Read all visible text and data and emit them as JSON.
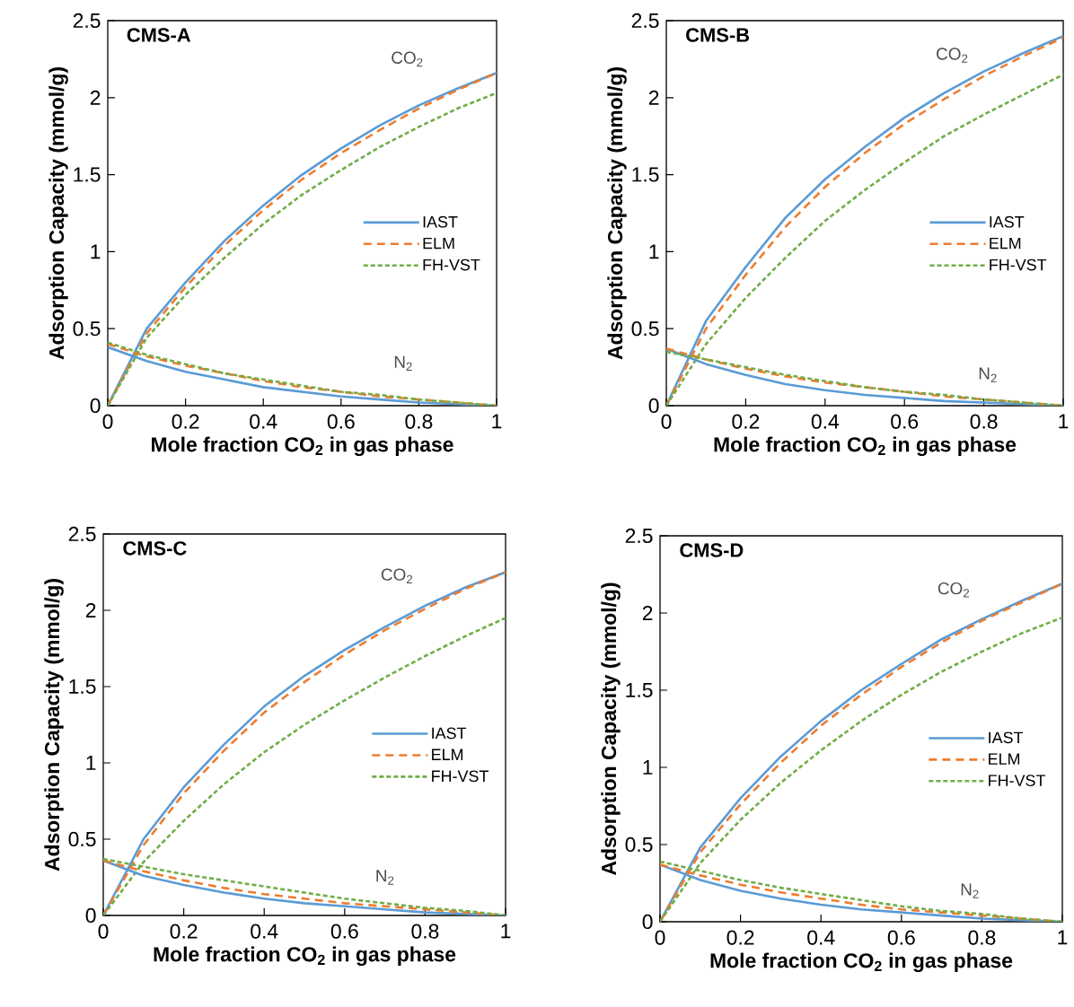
{
  "chart_data": [
    {
      "type": "line",
      "title": "CMS-A",
      "xlabel": "Mole fraction CO$_{2}$ in gas phase",
      "ylabel": "Adsorption Capacity (mmol/g)",
      "x": [
        0,
        0.1,
        0.2,
        0.3,
        0.4,
        0.5,
        0.6,
        0.7,
        0.8,
        0.9,
        1
      ],
      "xlim": [
        0,
        1
      ],
      "ylim": [
        0,
        2.5
      ],
      "xticks": [
        0,
        0.2,
        0.4,
        0.6,
        0.8,
        1
      ],
      "yticks": [
        0,
        0.5,
        1,
        1.5,
        2,
        2.5
      ],
      "legend": "right",
      "series": [
        {
          "name": "IAST",
          "color": "#5b9bd5",
          "line_style": "solid",
          "values": [
            0,
            0.5,
            0.8,
            1.07,
            1.3,
            1.5,
            1.67,
            1.82,
            1.95,
            2.06,
            2.16
          ]
        },
        {
          "name": "ELM",
          "color": "#ed7d31",
          "line_style": "dashed",
          "values": [
            0,
            0.47,
            0.77,
            1.04,
            1.27,
            1.47,
            1.64,
            1.79,
            1.93,
            2.05,
            2.16
          ]
        },
        {
          "name": "FH-VST",
          "color": "#70ad47",
          "line_style": "dotted",
          "values": [
            0,
            0.44,
            0.72,
            0.96,
            1.18,
            1.37,
            1.53,
            1.68,
            1.81,
            1.93,
            2.03
          ]
        },
        {
          "color": "#5b9bd5",
          "line_style": "solid",
          "values": [
            0.38,
            0.29,
            0.22,
            0.17,
            0.12,
            0.09,
            0.06,
            0.04,
            0.02,
            0.01,
            0
          ]
        },
        {
          "color": "#ed7d31",
          "line_style": "dashed",
          "values": [
            0.4,
            0.32,
            0.26,
            0.21,
            0.16,
            0.12,
            0.09,
            0.06,
            0.04,
            0.02,
            0
          ]
        },
        {
          "color": "#70ad47",
          "line_style": "dotted",
          "values": [
            0.41,
            0.33,
            0.27,
            0.21,
            0.17,
            0.13,
            0.09,
            0.07,
            0.04,
            0.02,
            0
          ]
        }
      ],
      "annotations": [
        "CO$_{2}$",
        "N$_{2}$"
      ]
    },
    {
      "type": "line",
      "title": "CMS-B",
      "xlabel": "Mole fraction CO$_{2}$ in gas phase",
      "ylabel": "Adsorption Capacity (mmol/g)",
      "x": [
        0,
        0.1,
        0.2,
        0.3,
        0.4,
        0.5,
        0.6,
        0.7,
        0.8,
        0.9,
        1
      ],
      "xlim": [
        0,
        1
      ],
      "ylim": [
        0,
        2.5
      ],
      "xticks": [
        0,
        0.2,
        0.4,
        0.6,
        0.8,
        1
      ],
      "yticks": [
        0,
        0.5,
        1,
        1.5,
        2,
        2.5
      ],
      "legend": "right",
      "series": [
        {
          "name": "IAST",
          "color": "#5b9bd5",
          "line_style": "solid",
          "values": [
            0,
            0.55,
            0.9,
            1.22,
            1.47,
            1.68,
            1.87,
            2.03,
            2.17,
            2.29,
            2.4
          ]
        },
        {
          "name": "ELM",
          "color": "#ed7d31",
          "line_style": "dashed",
          "values": [
            0,
            0.5,
            0.85,
            1.16,
            1.42,
            1.64,
            1.83,
            1.99,
            2.14,
            2.27,
            2.39
          ]
        },
        {
          "name": "FH-VST",
          "color": "#70ad47",
          "line_style": "dotted",
          "values": [
            0,
            0.4,
            0.7,
            0.96,
            1.2,
            1.4,
            1.58,
            1.75,
            1.89,
            2.02,
            2.15
          ]
        },
        {
          "color": "#5b9bd5",
          "line_style": "solid",
          "values": [
            0.37,
            0.27,
            0.2,
            0.14,
            0.1,
            0.07,
            0.05,
            0.03,
            0.02,
            0.01,
            0
          ]
        },
        {
          "color": "#ed7d31",
          "line_style": "dashed",
          "values": [
            0.37,
            0.3,
            0.24,
            0.19,
            0.15,
            0.12,
            0.09,
            0.06,
            0.04,
            0.02,
            0
          ]
        },
        {
          "color": "#70ad47",
          "line_style": "dotted",
          "values": [
            0.35,
            0.3,
            0.25,
            0.2,
            0.16,
            0.12,
            0.09,
            0.07,
            0.04,
            0.02,
            0
          ]
        }
      ],
      "annotations": [
        "CO$_{2}$",
        "N$_{2}$"
      ]
    },
    {
      "type": "line",
      "title": "CMS-C",
      "xlabel": "Mole fraction CO$_{2}$ in gas phase",
      "ylabel": "Adsorption Capacity (mmol/g)",
      "x": [
        0,
        0.1,
        0.2,
        0.3,
        0.4,
        0.5,
        0.6,
        0.7,
        0.8,
        0.9,
        1
      ],
      "xlim": [
        0,
        1
      ],
      "ylim": [
        0,
        2.5
      ],
      "xticks": [
        0,
        0.2,
        0.4,
        0.6,
        0.8,
        1
      ],
      "yticks": [
        0,
        0.5,
        1,
        1.5,
        2,
        2.5
      ],
      "legend": "right",
      "series": [
        {
          "name": "IAST",
          "color": "#5b9bd5",
          "line_style": "solid",
          "values": [
            0,
            0.5,
            0.84,
            1.12,
            1.37,
            1.57,
            1.74,
            1.89,
            2.03,
            2.15,
            2.25
          ]
        },
        {
          "name": "ELM",
          "color": "#ed7d31",
          "line_style": "dashed",
          "values": [
            0,
            0.46,
            0.8,
            1.08,
            1.33,
            1.53,
            1.71,
            1.87,
            2.01,
            2.14,
            2.25
          ]
        },
        {
          "name": "FH-VST",
          "color": "#70ad47",
          "line_style": "dotted",
          "values": [
            0,
            0.35,
            0.62,
            0.86,
            1.07,
            1.25,
            1.41,
            1.56,
            1.7,
            1.83,
            1.95
          ]
        },
        {
          "color": "#5b9bd5",
          "line_style": "solid",
          "values": [
            0.36,
            0.26,
            0.2,
            0.15,
            0.11,
            0.08,
            0.06,
            0.04,
            0.02,
            0.01,
            0
          ]
        },
        {
          "color": "#ed7d31",
          "line_style": "dashed",
          "values": [
            0.36,
            0.29,
            0.23,
            0.18,
            0.14,
            0.11,
            0.08,
            0.06,
            0.04,
            0.02,
            0
          ]
        },
        {
          "color": "#70ad47",
          "line_style": "dotted",
          "values": [
            0.37,
            0.32,
            0.27,
            0.23,
            0.19,
            0.15,
            0.11,
            0.08,
            0.05,
            0.03,
            0
          ]
        }
      ],
      "annotations": [
        "CO$_{2}$",
        "N$_{2}$"
      ]
    },
    {
      "type": "line",
      "title": "CMS-D",
      "xlabel": "Mole fraction CO$_{2}$ in gas phase",
      "ylabel": "Adsorption Capacity (mmol/g)",
      "x": [
        0,
        0.1,
        0.2,
        0.3,
        0.4,
        0.5,
        0.6,
        0.7,
        0.8,
        0.9,
        1
      ],
      "xlim": [
        0,
        1
      ],
      "ylim": [
        0,
        2.5
      ],
      "xticks": [
        0,
        0.2,
        0.4,
        0.6,
        0.8,
        1
      ],
      "yticks": [
        0,
        0.5,
        1,
        1.5,
        2,
        2.5
      ],
      "legend": "right",
      "series": [
        {
          "name": "IAST",
          "color": "#5b9bd5",
          "line_style": "solid",
          "values": [
            0,
            0.48,
            0.8,
            1.07,
            1.3,
            1.5,
            1.67,
            1.83,
            1.96,
            2.08,
            2.19
          ]
        },
        {
          "name": "ELM",
          "color": "#ed7d31",
          "line_style": "dashed",
          "values": [
            0,
            0.45,
            0.76,
            1.03,
            1.27,
            1.47,
            1.65,
            1.81,
            1.95,
            2.07,
            2.19
          ]
        },
        {
          "name": "FH-VST",
          "color": "#70ad47",
          "line_style": "dotted",
          "values": [
            0,
            0.38,
            0.66,
            0.9,
            1.11,
            1.3,
            1.47,
            1.62,
            1.75,
            1.87,
            1.97
          ]
        },
        {
          "color": "#5b9bd5",
          "line_style": "solid",
          "values": [
            0.37,
            0.27,
            0.2,
            0.15,
            0.11,
            0.08,
            0.06,
            0.04,
            0.02,
            0.01,
            0
          ]
        },
        {
          "color": "#ed7d31",
          "line_style": "dashed",
          "values": [
            0.37,
            0.3,
            0.24,
            0.19,
            0.15,
            0.11,
            0.08,
            0.06,
            0.04,
            0.02,
            0
          ]
        },
        {
          "color": "#70ad47",
          "line_style": "dotted",
          "values": [
            0.39,
            0.33,
            0.27,
            0.22,
            0.18,
            0.14,
            0.1,
            0.07,
            0.05,
            0.02,
            0
          ]
        }
      ],
      "annotations": [
        "CO$_{2}$",
        "N$_{2}$"
      ]
    }
  ]
}
